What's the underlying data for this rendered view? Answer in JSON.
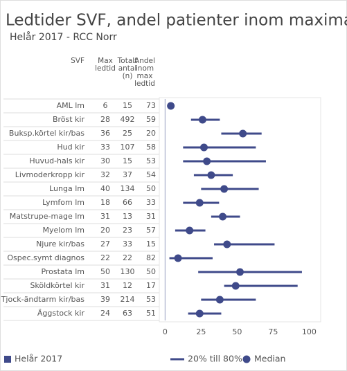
{
  "chart_data": {
    "type": "dot_range",
    "title": "Ledtider SVF, andel patienter inom maximal ledtid",
    "subtitle": "Helår 2017 - RCC Norr",
    "columns": [
      [
        "SVF"
      ],
      [
        "Max",
        "ledtid"
      ],
      [
        "Totalt",
        "antal",
        "(n)"
      ],
      [
        "Andel",
        "inom",
        "max",
        "ledtid"
      ]
    ],
    "categories": [
      "AML lm",
      "Bröst kir",
      "Buksp.körtel kir/bas",
      "Hud kir",
      "Huvud-hals kir",
      "Livmoderkropp kir",
      "Lunga lm",
      "Lymfom lm",
      "Matstrupe-mage lm",
      "Myelom lm",
      "Njure kir/bas",
      "Ospec.symt diagnos",
      "Prostata lm",
      "Sköldkörtel kir",
      "Tjock-ändtarm kir/bas",
      "Äggstock kir"
    ],
    "max_ledtid": [
      6,
      28,
      36,
      33,
      30,
      32,
      40,
      18,
      31,
      20,
      27,
      22,
      50,
      31,
      39,
      24
    ],
    "totalt_antal": [
      15,
      492,
      25,
      107,
      15,
      37,
      134,
      66,
      13,
      23,
      33,
      22,
      130,
      12,
      214,
      63
    ],
    "andel": [
      73,
      59,
      20,
      58,
      53,
      54,
      50,
      33,
      31,
      57,
      15,
      82,
      50,
      17,
      53,
      51
    ],
    "series": [
      {
        "name": "20% till 80%",
        "color": "#3f4a8a",
        "low": [
          null,
          18,
          39,
          12.5,
          12.5,
          20,
          25,
          12.5,
          32,
          7,
          34,
          3,
          23,
          41,
          25,
          16
        ],
        "high": [
          null,
          38,
          67,
          63,
          70,
          47,
          65,
          37.5,
          52,
          28,
          76,
          33,
          95,
          92,
          63,
          39
        ]
      },
      {
        "name": "Median",
        "color": "#3f4a8a",
        "values": [
          4,
          26,
          54,
          27,
          29,
          32,
          41,
          24,
          40,
          17,
          43,
          9,
          52,
          49,
          38,
          24
        ]
      }
    ],
    "period_label": "Helår 2017",
    "period_color": "#3f4a8a",
    "xlim": [
      -4,
      108
    ],
    "xticks": [
      0,
      25,
      50,
      75,
      100
    ]
  }
}
